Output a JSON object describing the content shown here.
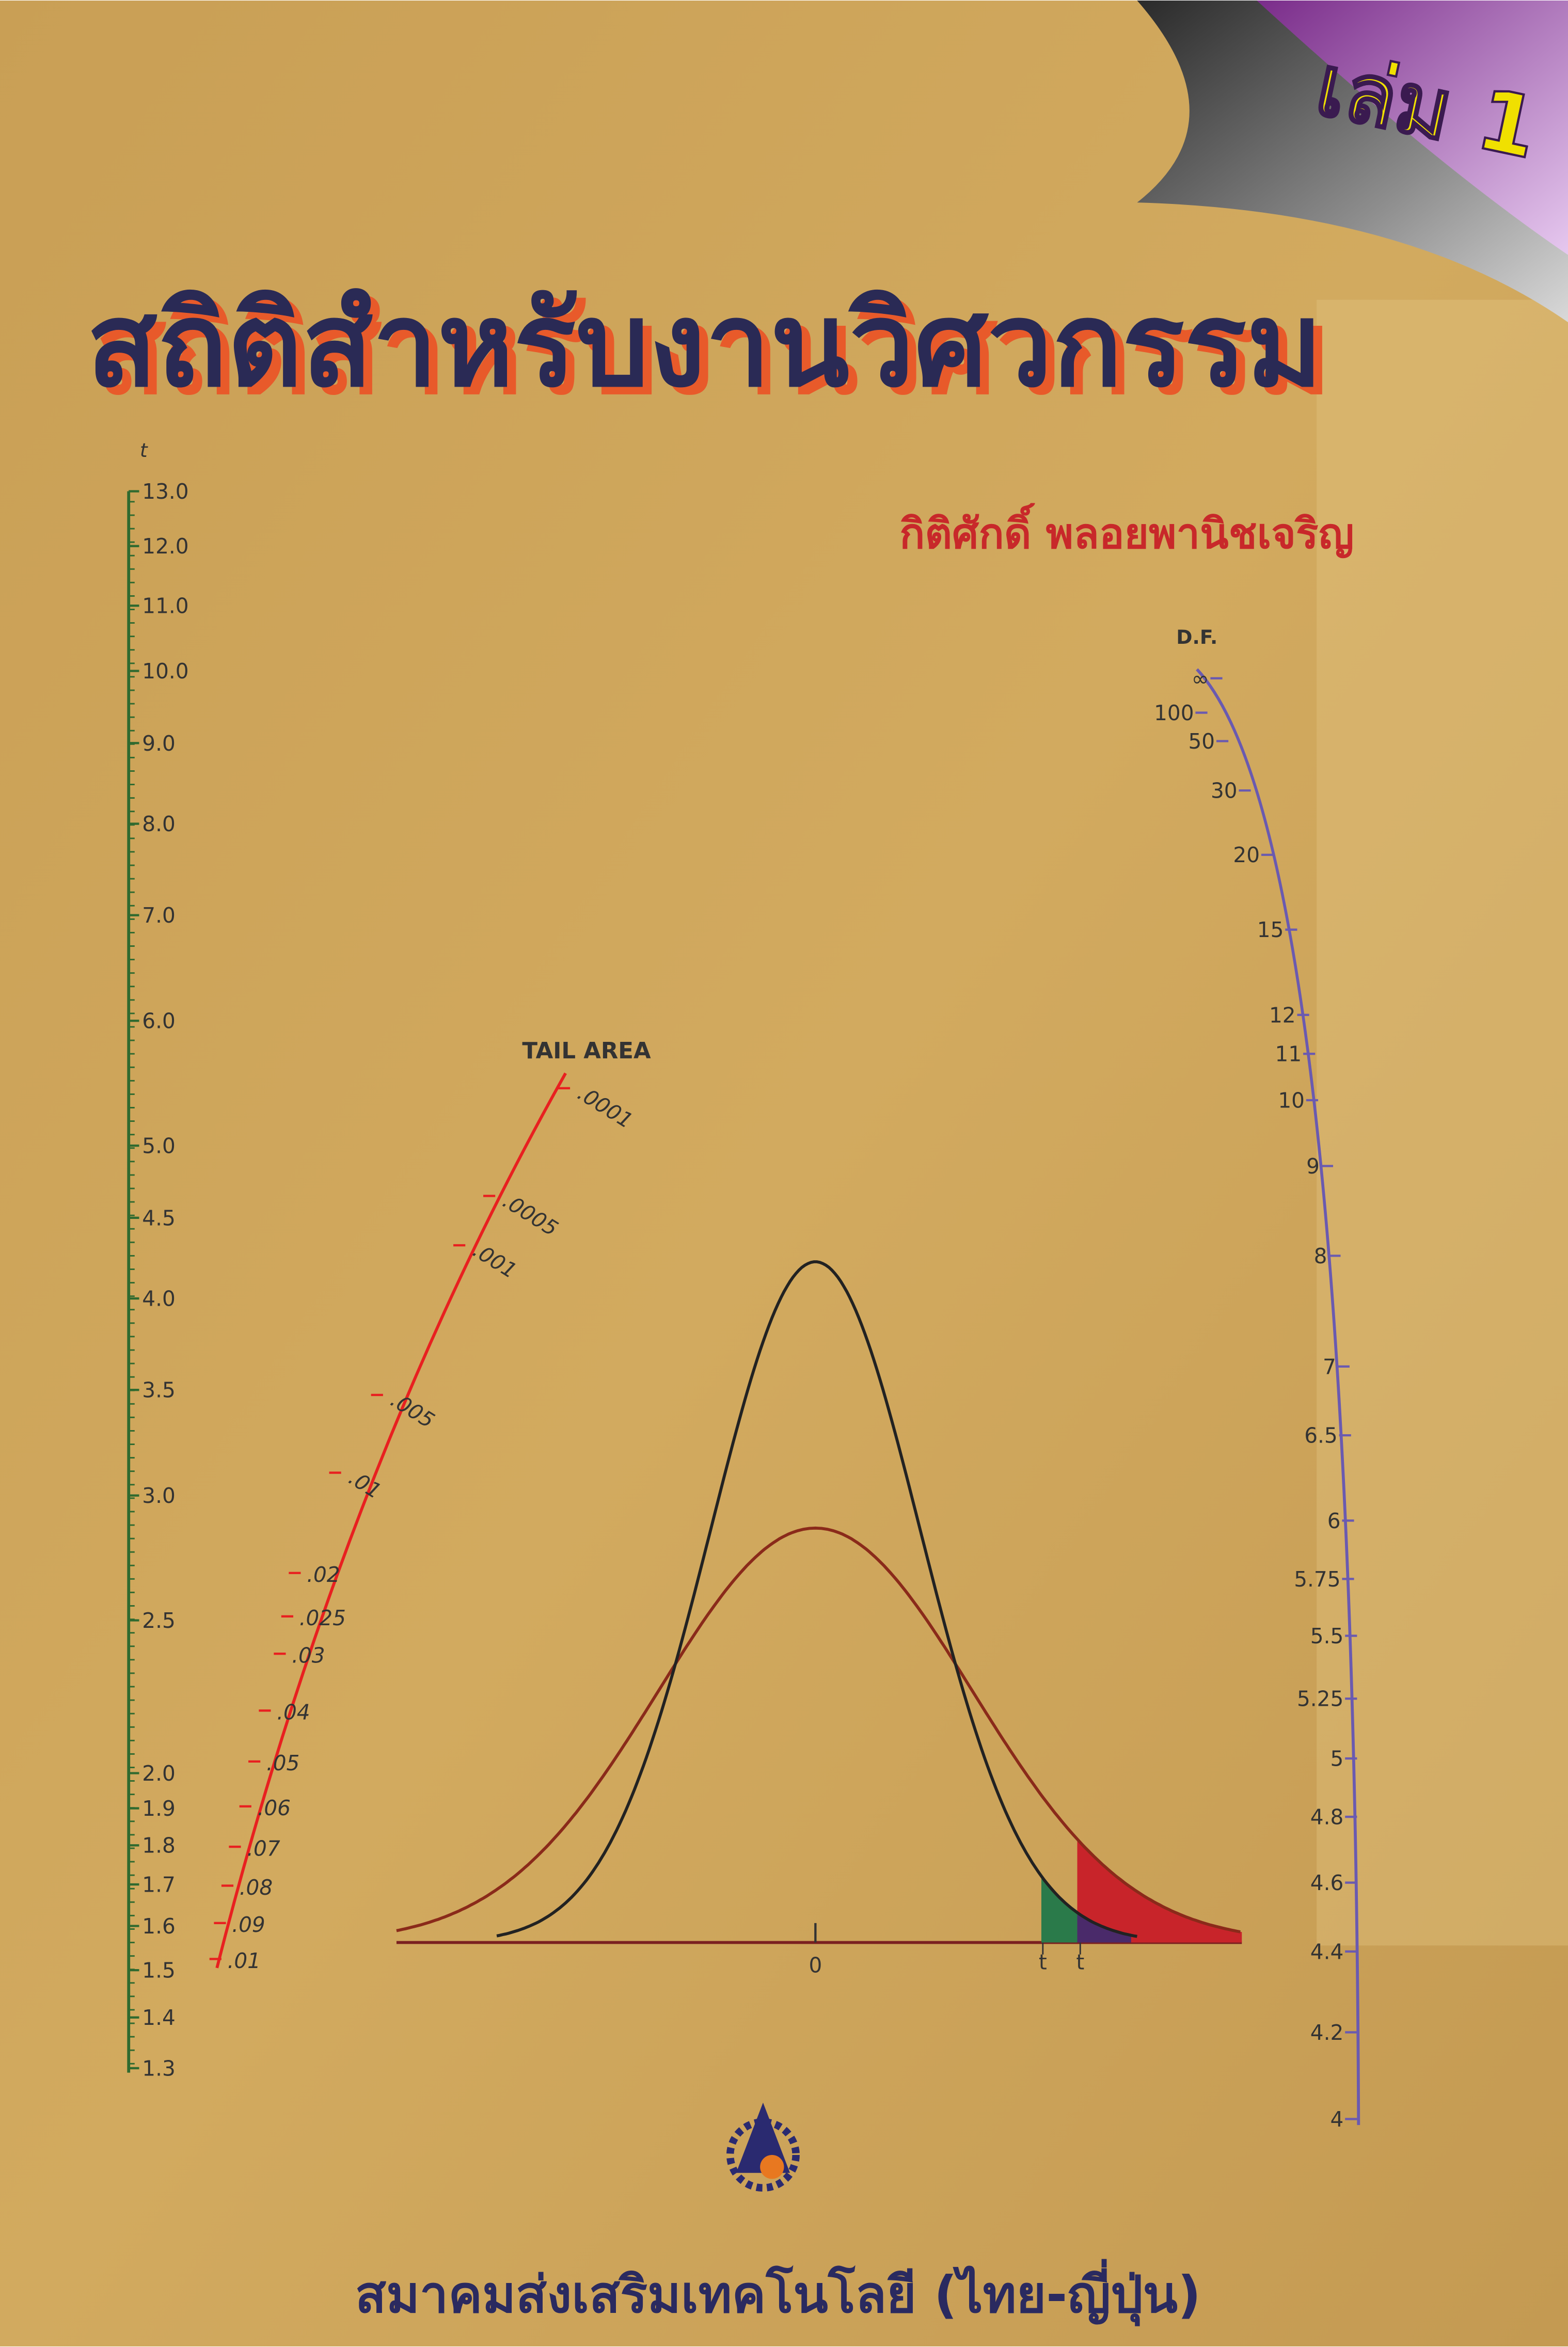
{
  "cover": {
    "volume": "เล่ม 1",
    "title": "สถิติสำหรับงานวิศวกรรม",
    "author": "กิติศักดิ์  พลอยพานิชเจริญ",
    "publisher": "สมาคมส่งเสริมเทคโนโลยี (ไทย-ญี่ปุ่น)"
  },
  "nomogram": {
    "t_axis": {
      "label": "t",
      "ticks": [
        "13.0",
        "12.0",
        "11.0",
        "10.0",
        "9.0",
        "8.0",
        "7.0",
        "6.0",
        "5.0",
        "4.5",
        "4.0",
        "3.5",
        "3.0",
        "2.5",
        "2.0",
        "1.9",
        "1.8",
        "1.7",
        "1.6",
        "1.5",
        "1.4",
        "1.3"
      ]
    },
    "tail_area": {
      "label": "TAIL AREA",
      "ticks": [
        ".0001",
        ".0005",
        ".001",
        ".005",
        ".01",
        ".02",
        ".025",
        ".03",
        ".04",
        ".05",
        ".06",
        ".07",
        ".08",
        ".09",
        ".01"
      ]
    },
    "df_axis": {
      "label": "D.F.",
      "ticks": [
        "∞",
        "100",
        "50",
        "30",
        "20",
        "15",
        "12",
        "11",
        "10",
        "9",
        "8",
        "7",
        "6.5",
        "6",
        "5.75",
        "5.5",
        "5.25",
        "5",
        "4.8",
        "4.6",
        "4.4",
        "4.2",
        "4"
      ]
    },
    "curve_labels": [
      "0",
      "t",
      "t"
    ]
  }
}
